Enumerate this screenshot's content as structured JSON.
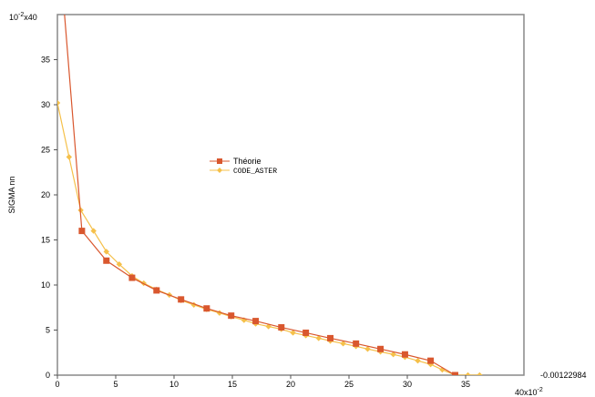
{
  "chart_data": {
    "type": "line",
    "title": "",
    "xlabel": "",
    "ylabel": "SIGMA nn",
    "x_unit_label": "40x10",
    "x_unit_exp": "-2",
    "y_unit_label": "x40",
    "y_unit_base": "10",
    "y_unit_exp": "-2",
    "y_zero_annotation": "-0.00122984",
    "xlim": [
      0,
      40
    ],
    "ylim": [
      0,
      40
    ],
    "x_ticks": [
      "0",
      "5",
      "10",
      "15",
      "20",
      "25",
      "30",
      "35"
    ],
    "y_ticks": [
      "0",
      "5",
      "10",
      "15",
      "20",
      "25",
      "30",
      "35"
    ],
    "legend_position": "center",
    "series": [
      {
        "name": "Théorie",
        "color": "#d9572e",
        "marker": "square",
        "x": [
          0.3,
          2.1,
          4.2,
          6.4,
          8.5,
          10.6,
          12.8,
          14.9,
          17.0,
          19.2,
          21.3,
          23.4,
          25.6,
          27.7,
          29.8,
          32.0,
          34.1
        ],
        "y": [
          45,
          16.0,
          12.7,
          10.8,
          9.4,
          8.4,
          7.4,
          6.6,
          6.0,
          5.3,
          4.7,
          4.1,
          3.5,
          2.9,
          2.3,
          1.6,
          0
        ]
      },
      {
        "name": "CODE_ASTER",
        "color": "#f5c04a",
        "marker": "diamond",
        "x": [
          0,
          1.0,
          2.0,
          3.1,
          4.2,
          5.3,
          6.4,
          7.4,
          8.5,
          9.6,
          10.6,
          11.7,
          12.8,
          13.9,
          14.9,
          16.0,
          17.0,
          18.1,
          19.2,
          20.2,
          21.3,
          22.4,
          23.4,
          24.5,
          25.6,
          26.6,
          27.7,
          28.8,
          29.8,
          30.9,
          32.0,
          33.0,
          34.1,
          35.2,
          36.2
        ],
        "y": [
          30.2,
          24.2,
          18.3,
          16.0,
          13.7,
          12.3,
          11.0,
          10.2,
          9.5,
          8.9,
          8.3,
          7.8,
          7.3,
          6.9,
          6.5,
          6.1,
          5.7,
          5.4,
          5.1,
          4.7,
          4.4,
          4.1,
          3.8,
          3.5,
          3.2,
          2.9,
          2.6,
          2.3,
          2.0,
          1.6,
          1.2,
          0.6,
          0,
          0,
          0
        ]
      }
    ]
  }
}
